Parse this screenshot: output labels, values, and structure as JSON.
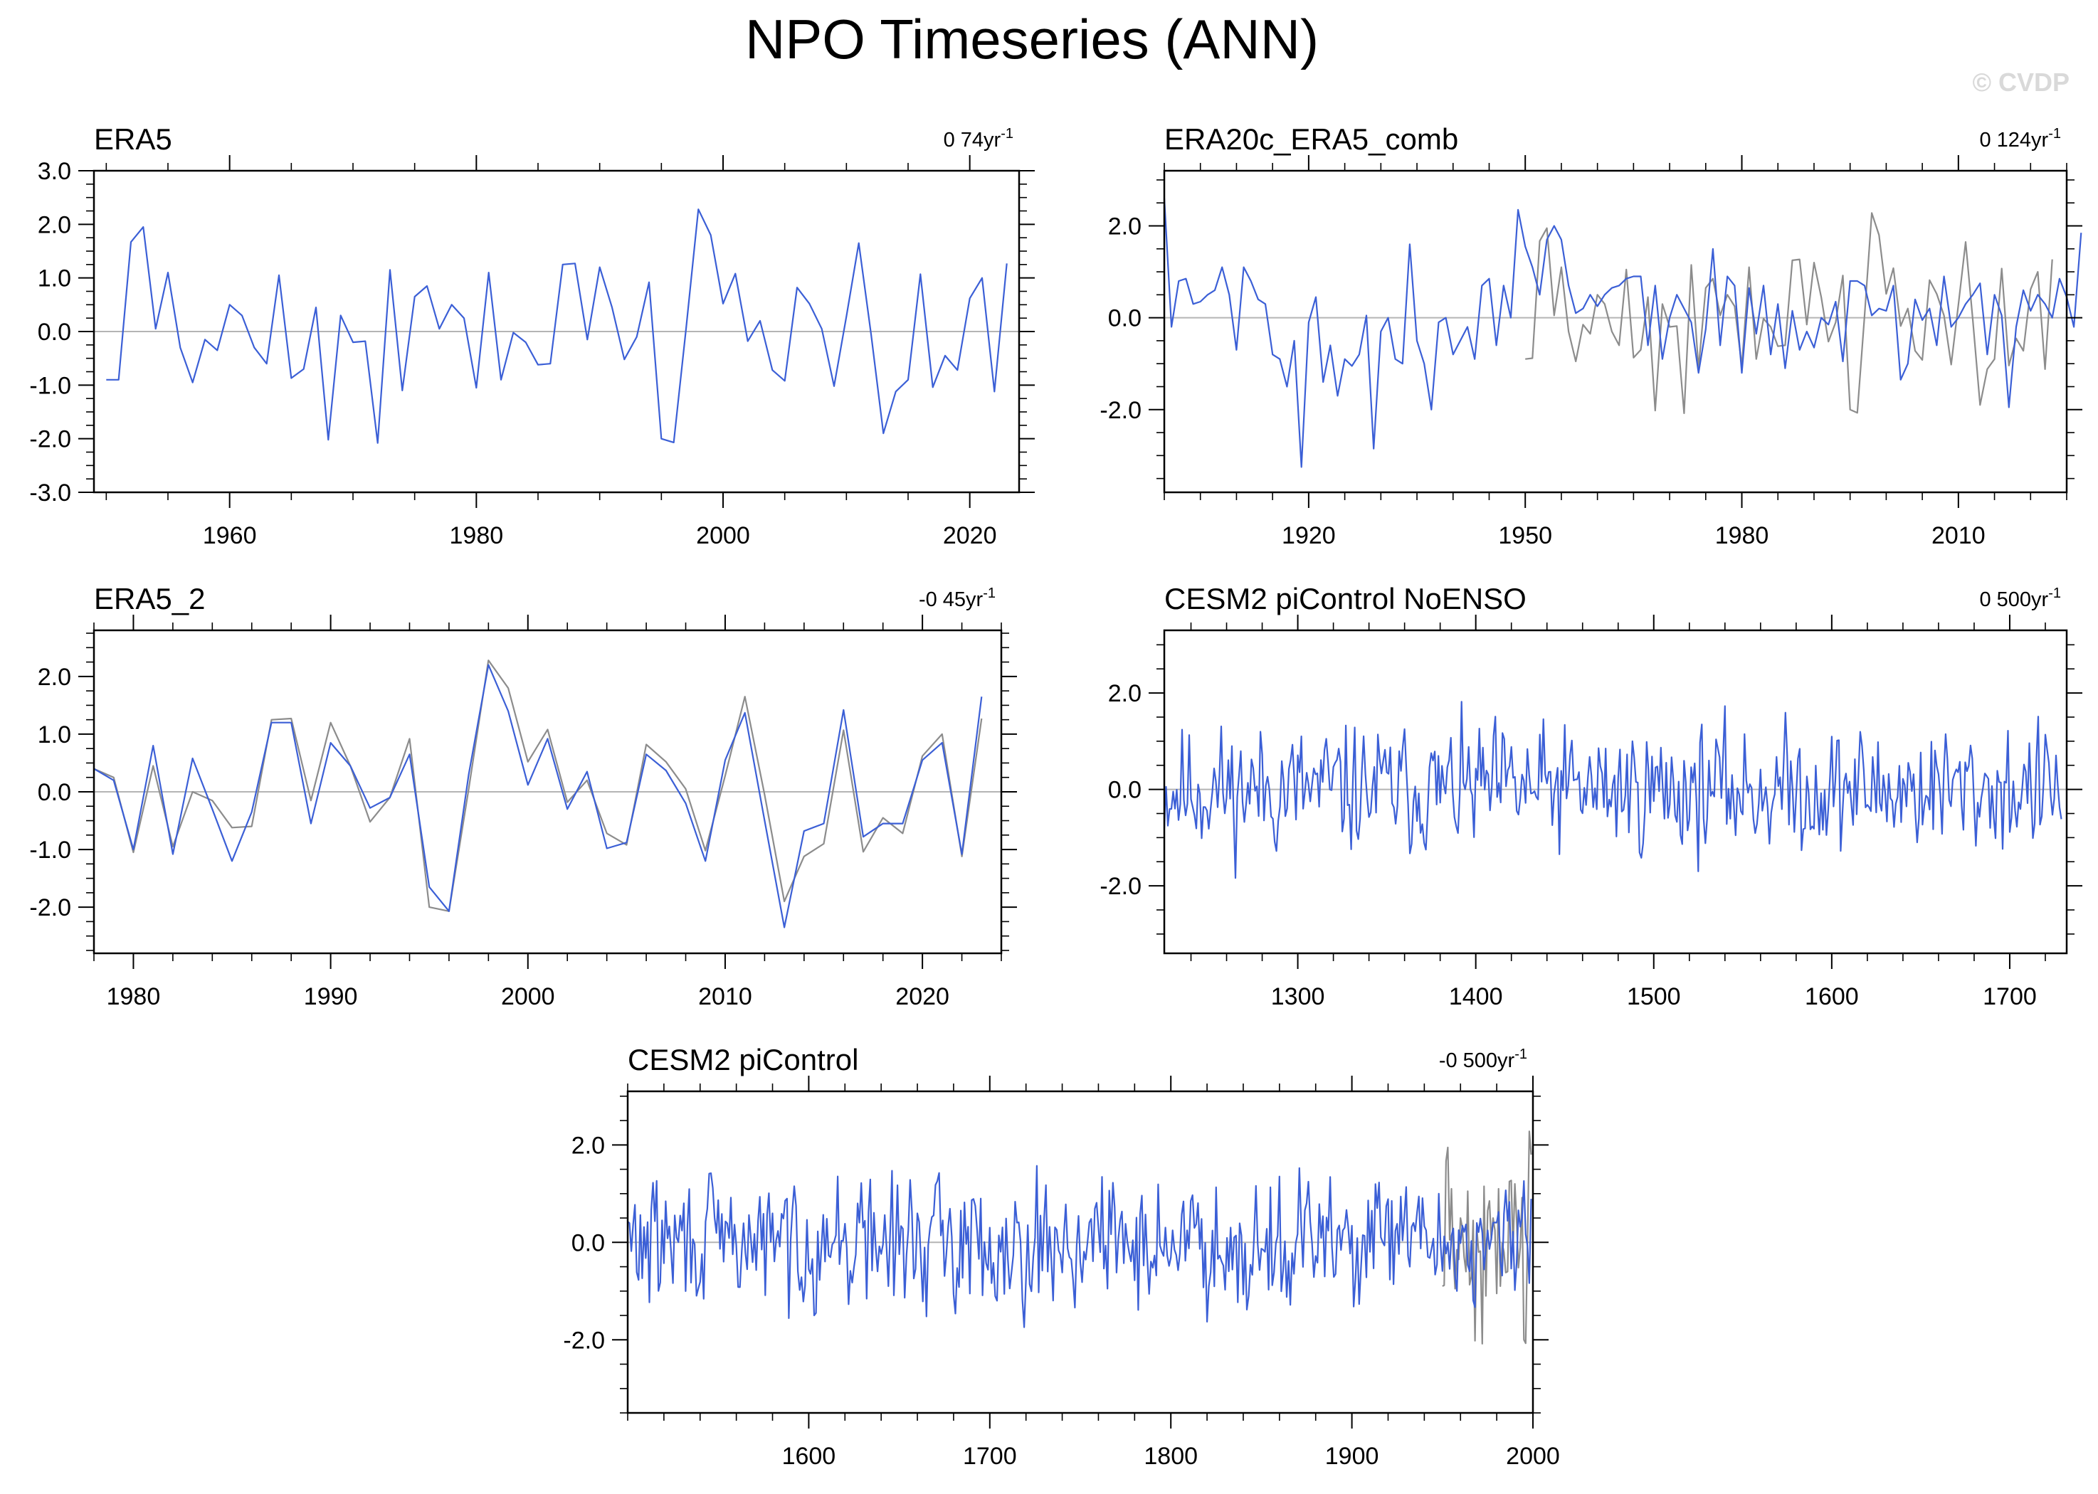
{
  "page": {
    "title": "NPO Timeseries (ANN)",
    "watermark": "© CVDP"
  },
  "colors": {
    "primary_series": "#3b5fd6",
    "secondary_series": "#8c8c8c",
    "zero_line": "#b4b4b4",
    "axis": "#000000",
    "watermark": "#d9d9d9"
  },
  "chart_data": [
    {
      "id": "era5",
      "type": "line",
      "title": "ERA5",
      "trend_label": "0 74yr",
      "trend_unit_sup": "-1",
      "xlim": [
        1949,
        2024
      ],
      "ylim": [
        -3.0,
        3.0
      ],
      "x_ticks": [
        1960,
        1980,
        2000,
        2020
      ],
      "y_ticks": [
        -3.0,
        -2.0,
        -1.0,
        0.0,
        1.0,
        2.0,
        3.0
      ],
      "x_minor_step": 5,
      "y_minor_step": 0.25,
      "zero_line": true,
      "x_start": 1950,
      "series": [
        {
          "role": "primary",
          "values": [
            -0.9,
            -0.9,
            1.67,
            1.95,
            0.05,
            1.1,
            -0.3,
            -0.95,
            -0.15,
            -0.35,
            0.5,
            0.3,
            -0.3,
            -0.6,
            1.05,
            -0.87,
            -0.7,
            0.45,
            -2.02,
            0.3,
            -0.2,
            -0.18,
            -2.08,
            1.15,
            -1.1,
            0.65,
            0.85,
            0.05,
            0.5,
            0.25,
            -1.05,
            1.1,
            -0.9,
            -0.02,
            -0.2,
            -0.62,
            -0.6,
            1.25,
            1.27,
            -0.15,
            1.2,
            0.45,
            -0.52,
            -0.1,
            0.92,
            -2.0,
            -2.07,
            0.05,
            2.28,
            1.8,
            0.52,
            1.08,
            -0.18,
            0.2,
            -0.72,
            -0.92,
            0.82,
            0.52,
            0.05,
            -1.02,
            0.28,
            1.65,
            -0.05,
            -1.9,
            -1.12,
            -0.9,
            1.07,
            -1.04,
            -0.45,
            -0.72,
            0.62,
            1.0,
            -1.12,
            1.27
          ]
        }
      ]
    },
    {
      "id": "era20c",
      "type": "line",
      "title": "ERA20c_ERA5_comb",
      "trend_label": "0 124yr",
      "trend_unit_sup": "-1",
      "xlim": [
        1900,
        2025
      ],
      "ylim": [
        -3.8,
        3.2
      ],
      "x_ticks": [
        1920,
        1950,
        1980,
        2010
      ],
      "y_ticks": [
        -2.0,
        0.0,
        2.0
      ],
      "x_minor_step": 5,
      "y_minor_step": 0.5,
      "zero_line": true,
      "x_start": 1900,
      "series": [
        {
          "role": "primary",
          "values": [
            2.6,
            -0.2,
            0.8,
            0.85,
            0.3,
            0.35,
            0.5,
            0.6,
            1.1,
            0.5,
            -0.7,
            1.1,
            0.8,
            0.4,
            0.3,
            -0.8,
            -0.9,
            -1.5,
            -0.5,
            -3.25,
            -0.1,
            0.45,
            -1.4,
            -0.6,
            -1.7,
            -0.9,
            -1.05,
            -0.8,
            0.05,
            -2.85,
            -0.3,
            0.0,
            -0.9,
            -1.0,
            1.6,
            -0.5,
            -1.0,
            -2.0,
            -0.1,
            0.0,
            -0.8,
            -0.5,
            -0.2,
            -0.9,
            0.7,
            0.85,
            -0.6,
            0.7,
            0.0,
            2.35,
            1.55,
            1.1,
            0.5,
            1.7,
            2.0,
            1.7,
            0.7,
            0.1,
            0.2,
            0.5,
            0.25,
            0.5,
            0.65,
            0.7,
            0.85,
            0.9,
            0.9,
            -0.6,
            0.7,
            -0.9,
            0.0,
            0.5,
            0.2,
            -0.1,
            -1.2,
            -0.25,
            1.5,
            -0.6,
            0.9,
            0.7,
            -1.2,
            0.65,
            -0.35,
            0.7,
            -0.8,
            0.3,
            -1.1,
            0.15,
            -0.7,
            -0.3,
            -0.65,
            0.0,
            -0.15,
            0.35,
            -0.95,
            0.8,
            0.8,
            0.7,
            0.05,
            0.2,
            0.15,
            0.7,
            -1.35,
            -1.0,
            0.4,
            -0.05,
            0.2,
            -0.6,
            0.9,
            -0.2,
            0.0,
            0.3,
            0.5,
            0.75,
            -0.8,
            0.5,
            0.05,
            -1.95,
            -0.2,
            0.6,
            0.15,
            0.5,
            0.3,
            0.0,
            0.85,
            0.45,
            -0.2,
            1.85
          ]
        },
        {
          "role": "secondary",
          "x_start": 1950,
          "values": [
            -0.9,
            -0.88,
            1.67,
            1.95,
            0.05,
            1.1,
            -0.3,
            -0.95,
            -0.15,
            -0.35,
            0.5,
            0.3,
            -0.3,
            -0.6,
            1.05,
            -0.87,
            -0.7,
            0.45,
            -2.02,
            0.3,
            -0.2,
            -0.18,
            -2.08,
            1.15,
            -1.1,
            0.65,
            0.85,
            0.05,
            0.5,
            0.25,
            -1.05,
            1.1,
            -0.9,
            -0.02,
            -0.2,
            -0.62,
            -0.6,
            1.25,
            1.27,
            -0.15,
            1.2,
            0.45,
            -0.52,
            -0.1,
            0.92,
            -2.0,
            -2.07,
            0.05,
            2.28,
            1.8,
            0.52,
            1.08,
            -0.18,
            0.2,
            -0.72,
            -0.92,
            0.82,
            0.52,
            0.05,
            -1.02,
            0.28,
            1.65,
            -0.05,
            -1.9,
            -1.12,
            -0.9,
            1.07,
            -1.04,
            -0.45,
            -0.72,
            0.62,
            1.0,
            -1.12,
            1.27
          ]
        }
      ]
    },
    {
      "id": "era5_2",
      "type": "line",
      "title": "ERA5_2",
      "trend_label": "-0 45yr",
      "trend_unit_sup": "-1",
      "xlim": [
        1978,
        2024
      ],
      "ylim": [
        -2.8,
        2.8
      ],
      "x_ticks": [
        1980,
        1990,
        2000,
        2010,
        2020
      ],
      "y_ticks": [
        -2.0,
        -1.0,
        0.0,
        1.0,
        2.0
      ],
      "x_minor_step": 2,
      "y_minor_step": 0.25,
      "zero_line": true,
      "x_start": 1978,
      "series": [
        {
          "role": "primary",
          "values": [
            0.4,
            0.2,
            -1.0,
            0.8,
            -1.08,
            0.58,
            -0.3,
            -1.2,
            -0.35,
            1.2,
            1.2,
            -0.55,
            0.85,
            0.45,
            -0.28,
            -0.1,
            0.65,
            -1.65,
            -2.07,
            0.3,
            2.2,
            1.4,
            0.12,
            0.92,
            -0.3,
            0.35,
            -0.98,
            -0.88,
            0.65,
            0.37,
            -0.2,
            -1.2,
            0.55,
            1.37,
            -0.5,
            -2.35,
            -0.68,
            -0.55,
            1.42,
            -0.78,
            -0.55,
            -0.55,
            0.55,
            0.85,
            -1.08,
            1.65
          ]
        },
        {
          "role": "secondary",
          "values": [
            0.4,
            0.25,
            -1.05,
            0.45,
            -0.95,
            0.0,
            -0.15,
            -0.62,
            -0.6,
            1.25,
            1.27,
            -0.15,
            1.2,
            0.45,
            -0.52,
            -0.1,
            0.92,
            -2.0,
            -2.07,
            0.05,
            2.28,
            1.8,
            0.52,
            1.08,
            -0.18,
            0.2,
            -0.72,
            -0.92,
            0.82,
            0.52,
            0.05,
            -1.02,
            0.28,
            1.65,
            -0.05,
            -1.9,
            -1.12,
            -0.9,
            1.07,
            -1.04,
            -0.45,
            -0.72,
            0.62,
            1.0,
            -1.12,
            1.27
          ]
        }
      ]
    },
    {
      "id": "noenso",
      "type": "line",
      "title": "CESM2 piControl NoENSO",
      "trend_label": "0 500yr",
      "trend_unit_sup": "-1",
      "xlim": [
        1225,
        1732
      ],
      "ylim": [
        -3.4,
        3.3
      ],
      "x_ticks": [
        1300,
        1400,
        1500,
        1600,
        1700
      ],
      "y_ticks": [
        -2.0,
        0.0,
        2.0
      ],
      "x_minor_step": 20,
      "y_minor_step": 0.5,
      "zero_line": true,
      "series": [
        {
          "role": "primary",
          "x_start": 1225,
          "n_points": 505,
          "seed": 11,
          "amp": 0.95,
          "lo": -2.95,
          "hi": 2.8
        }
      ]
    },
    {
      "id": "picontrol",
      "type": "line",
      "title": "CESM2 piControl",
      "trend_label": "-0 500yr",
      "trend_unit_sup": "-1",
      "xlim": [
        1500,
        2000
      ],
      "ylim": [
        -3.5,
        3.1
      ],
      "x_ticks": [
        1600,
        1700,
        1800,
        1900,
        2000
      ],
      "y_ticks": [
        -2.0,
        0.0,
        2.0
      ],
      "x_minor_step": 20,
      "y_minor_step": 0.5,
      "zero_line": true,
      "series": [
        {
          "role": "primary",
          "x_start": 1500,
          "n_points": 500,
          "seed": 29,
          "amp": 0.95,
          "lo": -3.05,
          "hi": 2.6
        },
        {
          "role": "secondary",
          "x_start": 1950,
          "values": [
            -0.9,
            -0.88,
            1.67,
            1.95,
            0.05,
            1.1,
            -0.3,
            -0.95,
            -0.15,
            -0.35,
            0.5,
            0.3,
            -0.3,
            -0.6,
            1.05,
            -0.87,
            -0.7,
            0.45,
            -2.02,
            0.3,
            -0.2,
            -0.18,
            -2.08,
            1.15,
            -1.1,
            0.65,
            0.85,
            0.05,
            0.5,
            0.25,
            -1.05,
            1.1,
            -0.9,
            -0.02,
            -0.2,
            -0.62,
            -0.6,
            1.25,
            1.27,
            -0.15,
            1.2,
            0.45,
            -0.52,
            -0.1,
            0.92,
            -2.0,
            -2.07,
            0.05,
            2.28,
            1.8
          ]
        }
      ]
    }
  ]
}
